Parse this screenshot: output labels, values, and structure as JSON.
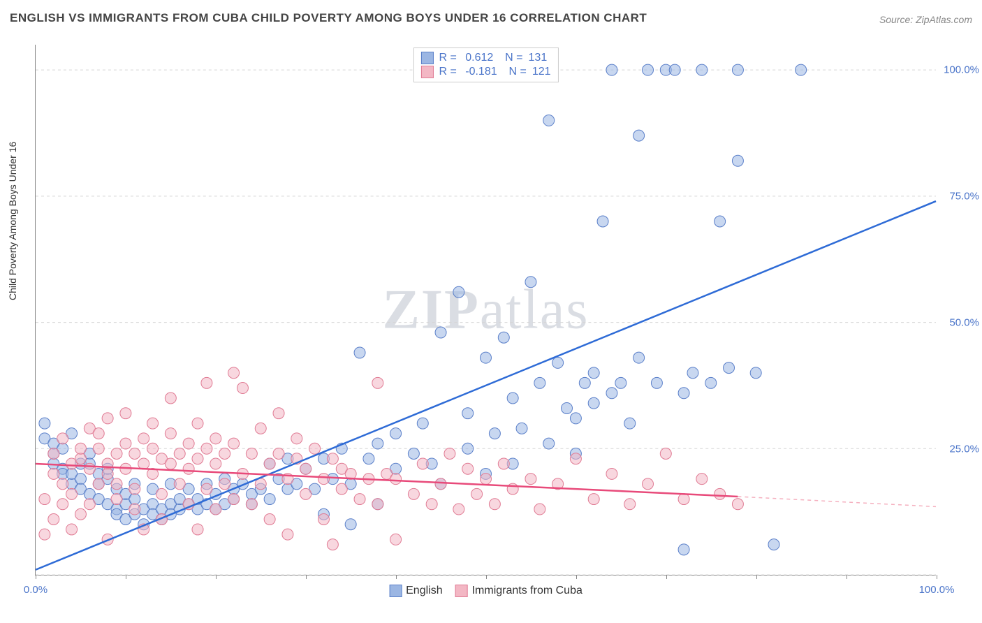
{
  "title": "ENGLISH VS IMMIGRANTS FROM CUBA CHILD POVERTY AMONG BOYS UNDER 16 CORRELATION CHART",
  "source_label": "Source: ZipAtlas.com",
  "y_axis_title": "Child Poverty Among Boys Under 16",
  "watermark": "ZIPatlas",
  "chart": {
    "type": "scatter",
    "xlim": [
      0,
      100
    ],
    "ylim": [
      0,
      105
    ],
    "x_ticks": [
      0,
      10,
      20,
      30,
      40,
      50,
      60,
      70,
      80,
      90,
      100
    ],
    "x_tick_labels": {
      "0": "0.0%",
      "100": "100.0%"
    },
    "y_gridlines": [
      0,
      25,
      50,
      75,
      100
    ],
    "y_tick_labels": {
      "25": "25.0%",
      "50": "50.0%",
      "75": "75.0%",
      "100": "100.0%"
    },
    "background_color": "#ffffff",
    "grid_color": "#d5d5d5",
    "axis_color": "#888888",
    "marker_radius": 8,
    "marker_opacity": 0.55,
    "series": [
      {
        "name": "English",
        "color_fill": "#9bb6e3",
        "color_stroke": "#5a7fc9",
        "r_value": "0.612",
        "n_value": "131",
        "trend": {
          "x1": 0,
          "y1": 1,
          "x2": 100,
          "y2": 74,
          "color": "#2e6bd6",
          "width": 2.5
        },
        "points": [
          [
            1,
            30
          ],
          [
            1,
            27
          ],
          [
            2,
            24
          ],
          [
            2,
            22
          ],
          [
            2,
            26
          ],
          [
            3,
            21
          ],
          [
            3,
            20
          ],
          [
            3,
            25
          ],
          [
            4,
            28
          ],
          [
            4,
            18
          ],
          [
            4,
            20
          ],
          [
            5,
            22
          ],
          [
            5,
            19
          ],
          [
            5,
            17
          ],
          [
            6,
            24
          ],
          [
            6,
            16
          ],
          [
            6,
            22
          ],
          [
            7,
            20
          ],
          [
            7,
            15
          ],
          [
            7,
            18
          ],
          [
            8,
            14
          ],
          [
            8,
            19
          ],
          [
            8,
            21
          ],
          [
            9,
            13
          ],
          [
            9,
            17
          ],
          [
            9,
            12
          ],
          [
            10,
            14
          ],
          [
            10,
            11
          ],
          [
            10,
            16
          ],
          [
            11,
            15
          ],
          [
            11,
            12
          ],
          [
            11,
            18
          ],
          [
            12,
            13
          ],
          [
            12,
            10
          ],
          [
            13,
            14
          ],
          [
            13,
            12
          ],
          [
            13,
            17
          ],
          [
            14,
            13
          ],
          [
            14,
            11
          ],
          [
            15,
            14
          ],
          [
            15,
            18
          ],
          [
            15,
            12
          ],
          [
            16,
            13
          ],
          [
            16,
            15
          ],
          [
            17,
            14
          ],
          [
            17,
            17
          ],
          [
            18,
            15
          ],
          [
            18,
            13
          ],
          [
            19,
            14
          ],
          [
            19,
            18
          ],
          [
            20,
            16
          ],
          [
            20,
            13
          ],
          [
            21,
            14
          ],
          [
            21,
            19
          ],
          [
            22,
            17
          ],
          [
            22,
            15
          ],
          [
            23,
            18
          ],
          [
            24,
            16
          ],
          [
            24,
            14
          ],
          [
            25,
            17
          ],
          [
            26,
            22
          ],
          [
            26,
            15
          ],
          [
            27,
            19
          ],
          [
            28,
            17
          ],
          [
            28,
            23
          ],
          [
            29,
            18
          ],
          [
            30,
            21
          ],
          [
            31,
            17
          ],
          [
            32,
            23
          ],
          [
            32,
            12
          ],
          [
            33,
            19
          ],
          [
            34,
            25
          ],
          [
            35,
            18
          ],
          [
            35,
            10
          ],
          [
            36,
            44
          ],
          [
            37,
            23
          ],
          [
            38,
            26
          ],
          [
            38,
            14
          ],
          [
            40,
            28
          ],
          [
            40,
            21
          ],
          [
            42,
            24
          ],
          [
            43,
            30
          ],
          [
            44,
            22
          ],
          [
            45,
            48
          ],
          [
            45,
            18
          ],
          [
            47,
            56
          ],
          [
            48,
            32
          ],
          [
            48,
            25
          ],
          [
            50,
            43
          ],
          [
            50,
            20
          ],
          [
            51,
            28
          ],
          [
            52,
            47
          ],
          [
            53,
            35
          ],
          [
            53,
            22
          ],
          [
            54,
            29
          ],
          [
            55,
            58
          ],
          [
            56,
            38
          ],
          [
            57,
            90
          ],
          [
            57,
            26
          ],
          [
            58,
            42
          ],
          [
            59,
            33
          ],
          [
            60,
            31
          ],
          [
            60,
            24
          ],
          [
            61,
            38
          ],
          [
            62,
            34
          ],
          [
            62,
            40
          ],
          [
            63,
            70
          ],
          [
            64,
            100
          ],
          [
            64,
            36
          ],
          [
            65,
            38
          ],
          [
            66,
            30
          ],
          [
            67,
            43
          ],
          [
            67,
            87
          ],
          [
            68,
            100
          ],
          [
            69,
            38
          ],
          [
            70,
            100
          ],
          [
            71,
            100
          ],
          [
            72,
            36
          ],
          [
            72,
            5
          ],
          [
            73,
            40
          ],
          [
            74,
            100
          ],
          [
            75,
            38
          ],
          [
            76,
            70
          ],
          [
            77,
            41
          ],
          [
            78,
            100
          ],
          [
            78,
            82
          ],
          [
            80,
            40
          ],
          [
            82,
            6
          ],
          [
            85,
            100
          ]
        ]
      },
      {
        "name": "Immigrants from Cuba",
        "color_fill": "#f3b7c4",
        "color_stroke": "#e07a93",
        "r_value": "-0.181",
        "n_value": "121",
        "trend": {
          "x1": 0,
          "y1": 22,
          "x2": 78,
          "y2": 15.5,
          "color": "#e84a7a",
          "width": 2.5
        },
        "trend_extend": {
          "x1": 78,
          "y1": 15.5,
          "x2": 100,
          "y2": 13.5,
          "color": "#f5b0bf",
          "width": 1.5,
          "dash": "5,5"
        },
        "points": [
          [
            1,
            15
          ],
          [
            1,
            8
          ],
          [
            2,
            24
          ],
          [
            2,
            11
          ],
          [
            2,
            20
          ],
          [
            3,
            14
          ],
          [
            3,
            27
          ],
          [
            3,
            18
          ],
          [
            4,
            22
          ],
          [
            4,
            9
          ],
          [
            4,
            16
          ],
          [
            5,
            23
          ],
          [
            5,
            25
          ],
          [
            5,
            12
          ],
          [
            6,
            21
          ],
          [
            6,
            29
          ],
          [
            6,
            14
          ],
          [
            7,
            18
          ],
          [
            7,
            25
          ],
          [
            7,
            28
          ],
          [
            8,
            22
          ],
          [
            8,
            7
          ],
          [
            8,
            20
          ],
          [
            8,
            31
          ],
          [
            9,
            24
          ],
          [
            9,
            15
          ],
          [
            9,
            18
          ],
          [
            10,
            26
          ],
          [
            10,
            21
          ],
          [
            10,
            32
          ],
          [
            11,
            24
          ],
          [
            11,
            17
          ],
          [
            11,
            13
          ],
          [
            12,
            22
          ],
          [
            12,
            27
          ],
          [
            12,
            9
          ],
          [
            13,
            25
          ],
          [
            13,
            20
          ],
          [
            13,
            30
          ],
          [
            14,
            23
          ],
          [
            14,
            16
          ],
          [
            14,
            11
          ],
          [
            15,
            28
          ],
          [
            15,
            22
          ],
          [
            15,
            35
          ],
          [
            16,
            24
          ],
          [
            16,
            18
          ],
          [
            17,
            26
          ],
          [
            17,
            21
          ],
          [
            17,
            14
          ],
          [
            18,
            30
          ],
          [
            18,
            23
          ],
          [
            18,
            9
          ],
          [
            19,
            25
          ],
          [
            19,
            17
          ],
          [
            19,
            38
          ],
          [
            20,
            27
          ],
          [
            20,
            22
          ],
          [
            20,
            13
          ],
          [
            21,
            24
          ],
          [
            21,
            18
          ],
          [
            22,
            26
          ],
          [
            22,
            40
          ],
          [
            22,
            15
          ],
          [
            23,
            37
          ],
          [
            23,
            20
          ],
          [
            24,
            24
          ],
          [
            24,
            14
          ],
          [
            25,
            29
          ],
          [
            25,
            18
          ],
          [
            26,
            22
          ],
          [
            26,
            11
          ],
          [
            27,
            24
          ],
          [
            27,
            32
          ],
          [
            28,
            19
          ],
          [
            28,
            8
          ],
          [
            29,
            23
          ],
          [
            29,
            27
          ],
          [
            30,
            21
          ],
          [
            30,
            16
          ],
          [
            31,
            25
          ],
          [
            32,
            19
          ],
          [
            32,
            11
          ],
          [
            33,
            23
          ],
          [
            33,
            6
          ],
          [
            34,
            21
          ],
          [
            34,
            17
          ],
          [
            35,
            20
          ],
          [
            36,
            15
          ],
          [
            37,
            19
          ],
          [
            38,
            14
          ],
          [
            38,
            38
          ],
          [
            39,
            20
          ],
          [
            40,
            7
          ],
          [
            40,
            19
          ],
          [
            42,
            16
          ],
          [
            43,
            22
          ],
          [
            44,
            14
          ],
          [
            45,
            18
          ],
          [
            46,
            24
          ],
          [
            47,
            13
          ],
          [
            48,
            21
          ],
          [
            49,
            16
          ],
          [
            50,
            19
          ],
          [
            51,
            14
          ],
          [
            52,
            22
          ],
          [
            53,
            17
          ],
          [
            55,
            19
          ],
          [
            56,
            13
          ],
          [
            58,
            18
          ],
          [
            60,
            23
          ],
          [
            62,
            15
          ],
          [
            64,
            20
          ],
          [
            66,
            14
          ],
          [
            68,
            18
          ],
          [
            70,
            24
          ],
          [
            72,
            15
          ],
          [
            74,
            19
          ],
          [
            76,
            16
          ],
          [
            78,
            14
          ]
        ]
      }
    ]
  },
  "legend_bottom": [
    {
      "label": "English",
      "fill": "#9bb6e3",
      "stroke": "#5a7fc9"
    },
    {
      "label": "Immigrants from Cuba",
      "fill": "#f3b7c4",
      "stroke": "#e07a93"
    }
  ]
}
